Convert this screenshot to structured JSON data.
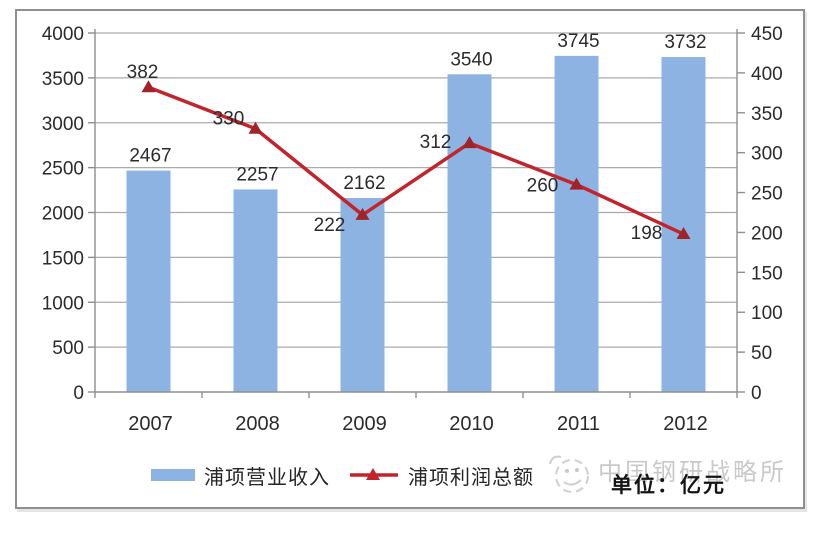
{
  "page": {
    "background": "#ffffff"
  },
  "frame": {
    "border_color": "#8f8f8f"
  },
  "chart_data": {
    "type": "bar",
    "subtype": "bar-line-combo",
    "title": "",
    "categories": [
      "2007",
      "2008",
      "2009",
      "2010",
      "2011",
      "2012"
    ],
    "series": [
      {
        "name": "浦项营业收入",
        "type": "bar",
        "axis": "left",
        "color": "#8db3e2",
        "values": [
          2467,
          2257,
          2162,
          3540,
          3745,
          3732
        ]
      },
      {
        "name": "浦项利润总额",
        "type": "line",
        "axis": "right",
        "color": "#c2242c",
        "marker": "triangle",
        "marker_color": "#9e2428",
        "values": [
          382,
          330,
          222,
          312,
          260,
          198
        ],
        "label_offsets": [
          [
            -6,
            -9
          ],
          [
            -27,
            -4
          ],
          [
            -33,
            16
          ],
          [
            -34,
            5
          ],
          [
            -34,
            7
          ],
          [
            -37,
            5
          ]
        ]
      }
    ],
    "left_axis": {
      "min": 0,
      "max": 4000,
      "step": 500,
      "ticks": [
        "0",
        "500",
        "1000",
        "1500",
        "2000",
        "2500",
        "3000",
        "3500",
        "4000"
      ]
    },
    "right_axis": {
      "min": 0,
      "max": 450,
      "step": 50,
      "ticks": [
        "0",
        "50",
        "100",
        "150",
        "200",
        "250",
        "300",
        "350",
        "400",
        "450"
      ]
    },
    "grid": true,
    "legend_position": "bottom",
    "unit": "亿元",
    "colors": {
      "grid": "#ababab",
      "axis": "#8f8f8f",
      "text": "#2b2b2b"
    }
  },
  "legend": {
    "items": [
      {
        "label": "浦项营业收入",
        "swatch": "bar"
      },
      {
        "label": "浦项利润总额",
        "swatch": "line"
      }
    ]
  },
  "footer": {
    "unit_label": "单位：亿元"
  },
  "watermark": {
    "text": "中国钢研战略所"
  }
}
